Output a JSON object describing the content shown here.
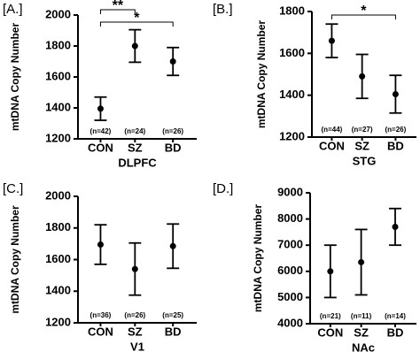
{
  "chart_data": [
    {
      "type": "errorbar",
      "panel_label": "[A.]",
      "ylabel": "mtDNA Copy Number",
      "xlabel": "DLPFC",
      "categories": [
        "CON",
        "SZ",
        "BD"
      ],
      "n_labels": [
        "(n=42)",
        "(n=24)",
        "(n=26)"
      ],
      "values": [
        1395,
        1800,
        1700
      ],
      "errors": [
        75,
        105,
        90
      ],
      "ylim": [
        1200,
        2000
      ],
      "yticks": [
        1200,
        1400,
        1600,
        1800,
        2000
      ],
      "significance": [
        {
          "between": [
            "CON",
            "SZ"
          ],
          "label": "**"
        },
        {
          "between": [
            "CON",
            "BD"
          ],
          "label": "*"
        }
      ]
    },
    {
      "type": "errorbar",
      "panel_label": "[B.]",
      "ylabel": "mtDNA Copy Number",
      "xlabel": "STG",
      "categories": [
        "CON",
        "SZ",
        "BD"
      ],
      "n_labels": [
        "(n=44)",
        "(n=27)",
        "(n=26)"
      ],
      "values": [
        1660,
        1490,
        1405
      ],
      "errors": [
        80,
        105,
        90
      ],
      "ylim": [
        1200,
        1800
      ],
      "yticks": [
        1200,
        1400,
        1600,
        1800
      ],
      "significance": [
        {
          "between": [
            "CON",
            "BD"
          ],
          "label": "*"
        }
      ]
    },
    {
      "type": "errorbar",
      "panel_label": "[C.]",
      "ylabel": "mtDNA Copy Number",
      "xlabel": "V1",
      "categories": [
        "CON",
        "SZ",
        "BD"
      ],
      "n_labels": [
        "(n=36)",
        "(n=26)",
        "(n=25)"
      ],
      "values": [
        1695,
        1540,
        1685
      ],
      "errors": [
        125,
        165,
        140
      ],
      "ylim": [
        1200,
        2000
      ],
      "yticks": [
        1200,
        1400,
        1600,
        1800,
        2000
      ]
    },
    {
      "type": "errorbar",
      "panel_label": "[D.]",
      "ylabel": "mtDNA Copy Number",
      "xlabel": "NAc",
      "categories": [
        "CON",
        "SZ",
        "BD"
      ],
      "n_labels": [
        "(n=21)",
        "(n=11)",
        "(n=14)"
      ],
      "values": [
        6000,
        6350,
        7700
      ],
      "errors": [
        1000,
        1250,
        700
      ],
      "ylim": [
        4000,
        9000
      ],
      "yticks": [
        4000,
        5000,
        6000,
        7000,
        8000,
        9000
      ]
    }
  ]
}
